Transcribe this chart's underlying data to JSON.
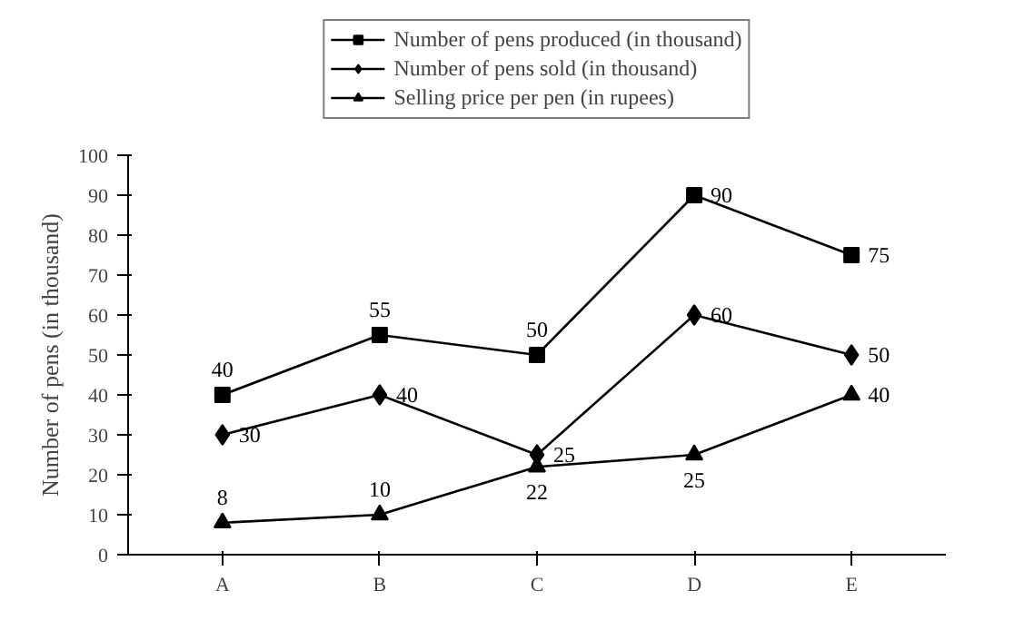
{
  "chart_data": {
    "type": "line",
    "ylabel": "Number of pens (in thousand)",
    "categories": [
      "A",
      "B",
      "C",
      "D",
      "E"
    ],
    "series": [
      {
        "name": "Number of pens produced (in thousand)",
        "color": "#000000",
        "marker": "square",
        "values": [
          40,
          55,
          50,
          90,
          75
        ]
      },
      {
        "name": "Number of pens sold (in thousand)",
        "color": "#000000",
        "marker": "diamond",
        "values": [
          30,
          40,
          25,
          60,
          50
        ]
      },
      {
        "name": "Selling price per pen (in rupees)",
        "color": "#000000",
        "marker": "triangle",
        "values": [
          8,
          10,
          22,
          25,
          40
        ]
      }
    ],
    "ylim": [
      0,
      100
    ],
    "yticks": [
      0,
      10,
      20,
      30,
      40,
      50,
      60,
      70,
      80,
      90,
      100
    ],
    "grid": false,
    "legend": "top",
    "data_labels": true,
    "line_style": "solid"
  }
}
